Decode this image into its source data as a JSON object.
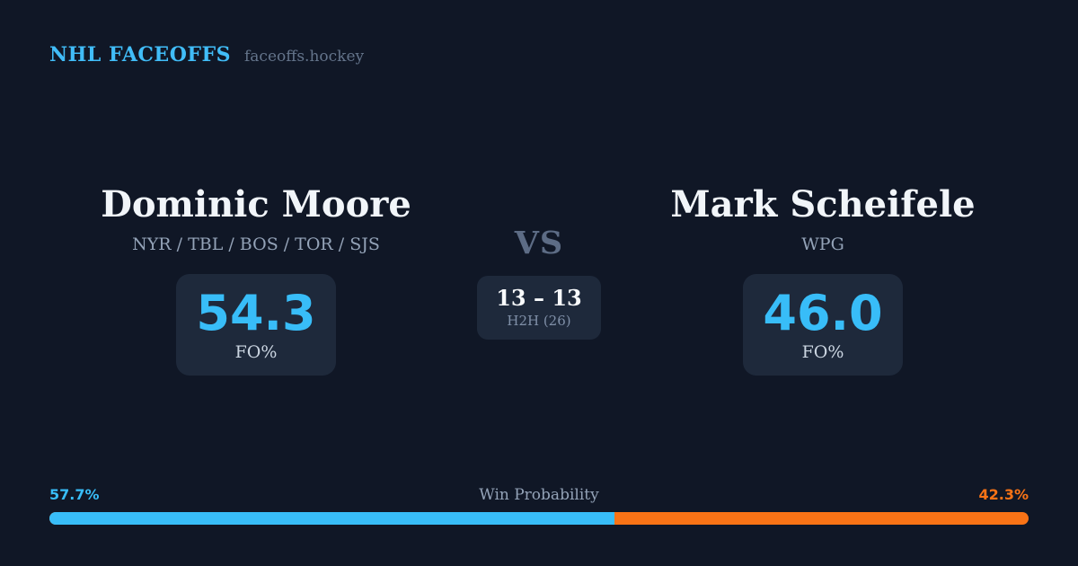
{
  "header": {
    "brand": "NHL FACEOFFS",
    "site": "faceoffs.hockey"
  },
  "players": {
    "left": {
      "name": "Dominic Moore",
      "teams": "NYR / TBL / BOS / TOR / SJS",
      "stat_value": "54.3",
      "stat_label": "FO%"
    },
    "right": {
      "name": "Mark Scheifele",
      "teams": "WPG",
      "stat_value": "46.0",
      "stat_label": "FO%"
    }
  },
  "matchup": {
    "vs_label": "VS",
    "h2h_score": "13 – 13",
    "h2h_label": "H2H (26)"
  },
  "win_probability": {
    "title": "Win Probability",
    "left_pct_label": "57.7%",
    "right_pct_label": "42.3%",
    "left_value": 57.7,
    "right_value": 42.3
  },
  "colors": {
    "background": "#101726",
    "card_background": "#1e293b",
    "accent_blue": "#38bdf8",
    "accent_orange": "#f97316",
    "text_primary": "#f1f5f9",
    "text_muted": "#94a3b8"
  }
}
